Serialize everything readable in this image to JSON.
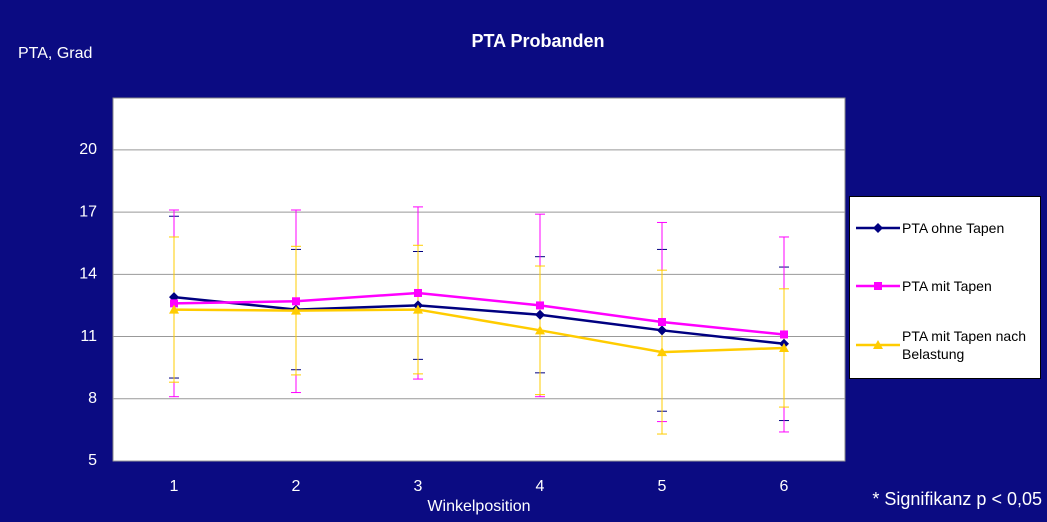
{
  "chart_data": {
    "type": "line",
    "title": "PTA  Probanden",
    "y_label": "PTA, Grad",
    "x_label": "Winkelposition",
    "annotation": "* Signifikanz p < 0,05",
    "categories": [
      "1",
      "2",
      "3",
      "4",
      "5",
      "6"
    ],
    "ylim": [
      5,
      22.5
    ],
    "yticks": [
      5,
      8,
      11,
      14,
      17,
      20
    ],
    "grid": true,
    "legend": "right",
    "series": [
      {
        "name": "PTA ohne Tapen",
        "color": "#000080",
        "marker": "diamond",
        "values": [
          12.9,
          12.3,
          12.5,
          12.05,
          11.3,
          10.65
        ],
        "errors": [
          3.9,
          2.9,
          2.6,
          2.8,
          3.9,
          3.7
        ]
      },
      {
        "name": "PTA mit Tapen",
        "color": "#ff00ff",
        "marker": "square",
        "values": [
          12.6,
          12.7,
          13.1,
          12.5,
          11.7,
          11.1
        ],
        "errors": [
          4.5,
          4.4,
          4.15,
          4.4,
          4.8,
          4.7
        ]
      },
      {
        "name": "PTA mit Tapen nach Belastung",
        "color": "#ffcc00",
        "marker": "triangle",
        "values": [
          12.3,
          12.25,
          12.3,
          11.3,
          10.25,
          10.45
        ],
        "errors": [
          3.5,
          3.1,
          3.1,
          3.1,
          3.95,
          2.85
        ]
      }
    ]
  }
}
